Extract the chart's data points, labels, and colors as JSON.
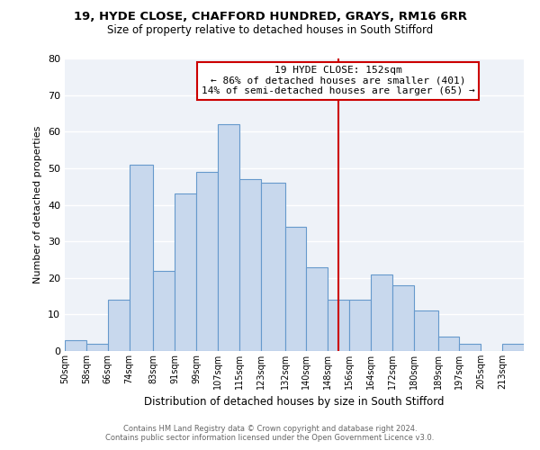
{
  "title1": "19, HYDE CLOSE, CHAFFORD HUNDRED, GRAYS, RM16 6RR",
  "title2": "Size of property relative to detached houses in South Stifford",
  "xlabel": "Distribution of detached houses by size in South Stifford",
  "ylabel": "Number of detached properties",
  "bin_labels": [
    "50sqm",
    "58sqm",
    "66sqm",
    "74sqm",
    "83sqm",
    "91sqm",
    "99sqm",
    "107sqm",
    "115sqm",
    "123sqm",
    "132sqm",
    "140sqm",
    "148sqm",
    "156sqm",
    "164sqm",
    "172sqm",
    "180sqm",
    "189sqm",
    "197sqm",
    "205sqm",
    "213sqm"
  ],
  "bar_heights": [
    3,
    2,
    14,
    51,
    22,
    43,
    49,
    62,
    47,
    46,
    34,
    23,
    14,
    14,
    21,
    18,
    11,
    4,
    2,
    0,
    2
  ],
  "bar_color": "#c8d8ed",
  "bar_edge_color": "#6699cc",
  "vline_color": "#cc0000",
  "annotation_title": "19 HYDE CLOSE: 152sqm",
  "annotation_line1": "← 86% of detached houses are smaller (401)",
  "annotation_line2": "14% of semi-detached houses are larger (65) →",
  "annotation_box_color": "#ffffff",
  "annotation_box_edge": "#cc0000",
  "footer1": "Contains HM Land Registry data © Crown copyright and database right 2024.",
  "footer2": "Contains public sector information licensed under the Open Government Licence v3.0.",
  "ylim": [
    0,
    80
  ],
  "bin_edges": [
    50,
    58,
    66,
    74,
    83,
    91,
    99,
    107,
    115,
    123,
    132,
    140,
    148,
    156,
    164,
    172,
    180,
    189,
    197,
    205,
    213,
    221
  ]
}
